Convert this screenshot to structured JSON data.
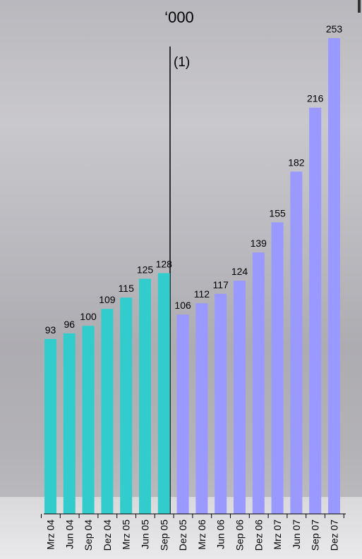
{
  "chart_data": {
    "type": "bar",
    "unit_label": "‘000",
    "divider_label": "(1)",
    "categories": [
      "Mrz 04",
      "Jun 04",
      "Sep 04",
      "Dez 04",
      "Mrz 05",
      "Jun 05",
      "Sep 05",
      "Dez 05",
      "Mrz 06",
      "Jun 06",
      "Sep 06",
      "Dez 06",
      "Mrz 07",
      "Jun 07",
      "Sep 07",
      "Dez 07"
    ],
    "series": [
      {
        "color": "#33cccc",
        "values": [
          93,
          96,
          100,
          109,
          115,
          125,
          128,
          null,
          null,
          null,
          null,
          null,
          null,
          null,
          null,
          null
        ]
      },
      {
        "color": "#9999ff",
        "values": [
          null,
          null,
          null,
          null,
          null,
          null,
          null,
          106,
          112,
          117,
          124,
          139,
          155,
          182,
          216,
          253
        ]
      }
    ],
    "ylim": [
      0,
      253
    ],
    "grid": false,
    "legend": "none"
  }
}
